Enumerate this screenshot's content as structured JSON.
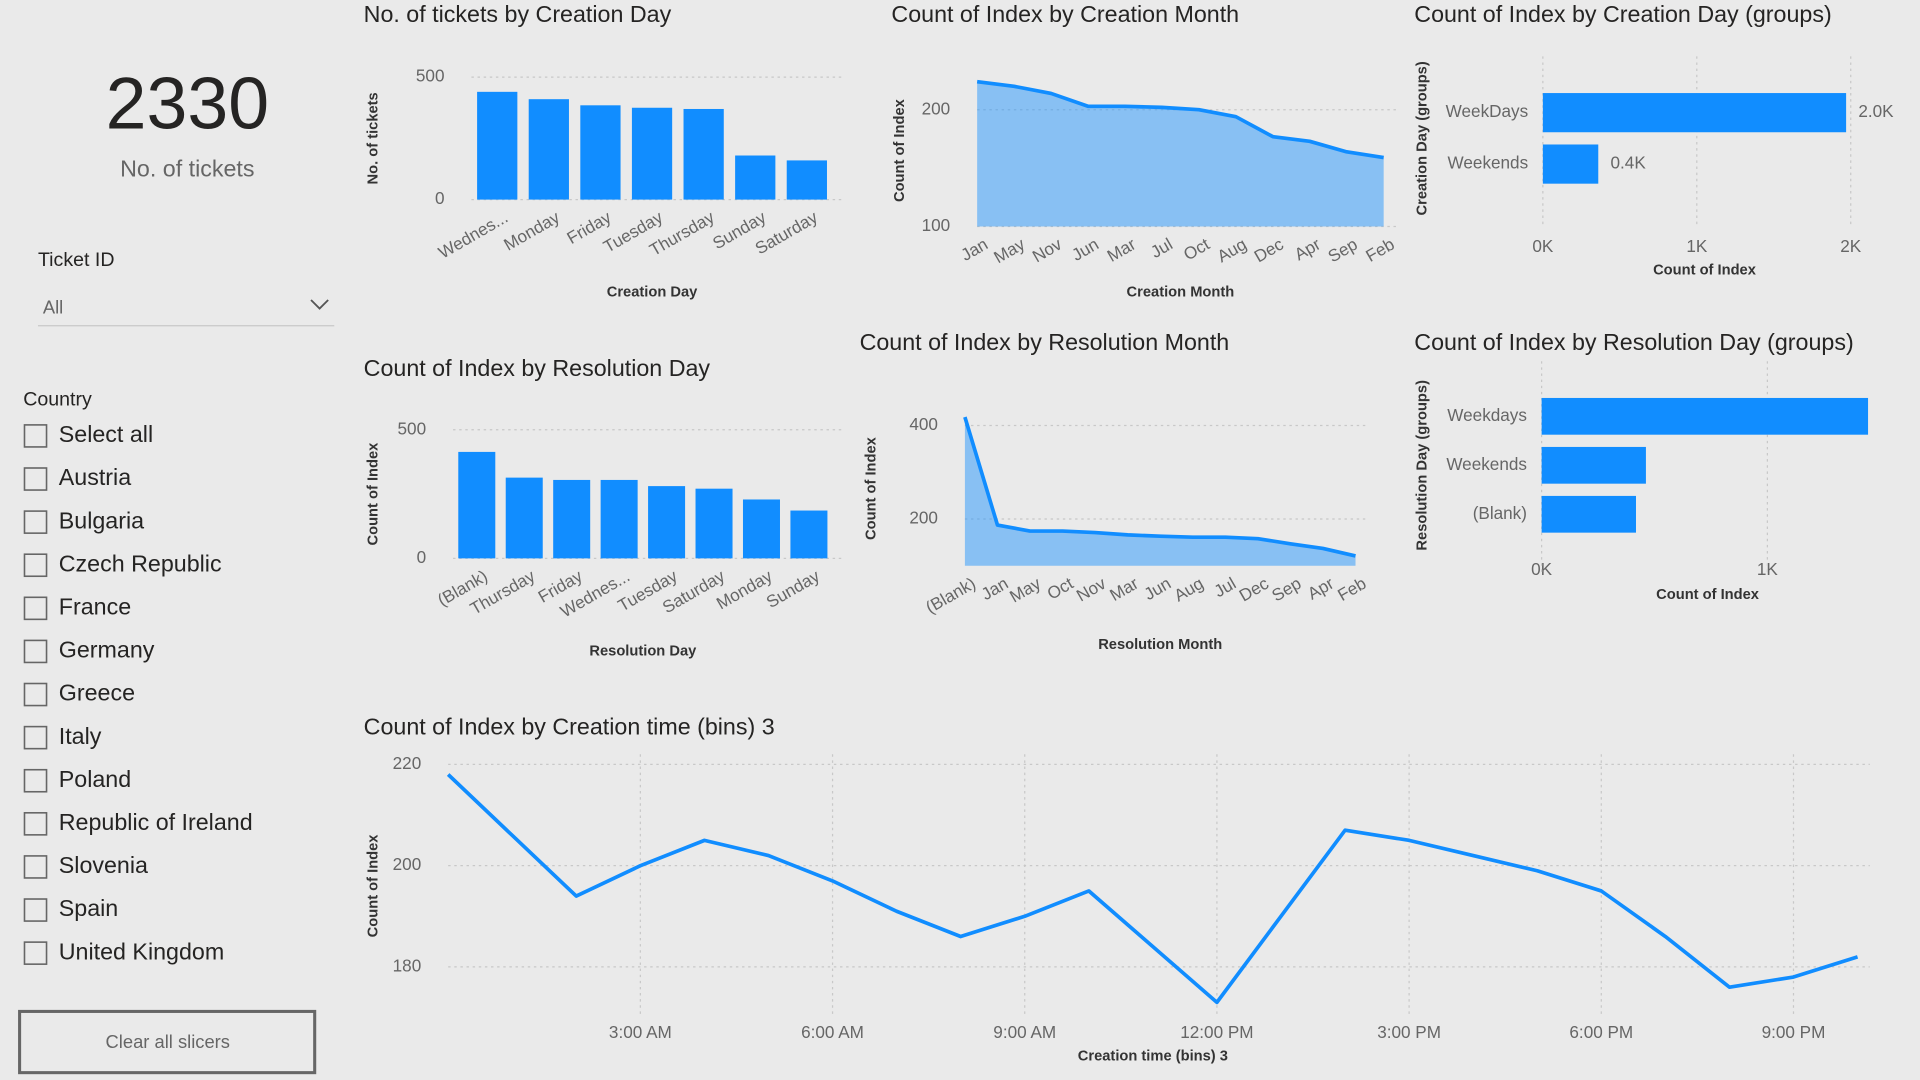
{
  "card": {
    "value": "2330",
    "label": "No. of tickets"
  },
  "ticket_slicer": {
    "title": "Ticket ID",
    "selection": "All"
  },
  "country_slicer": {
    "title": "Country",
    "items": [
      "Select all",
      "Austria",
      "Bulgaria",
      "Czech Republic",
      "France",
      "Germany",
      "Greece",
      "Italy",
      "Poland",
      "Republic of Ireland",
      "Slovenia",
      "Spain",
      "United Kingdom"
    ]
  },
  "button": {
    "label": "Clear all slicers"
  },
  "chart_data": [
    {
      "type": "bar",
      "title": "No. of tickets by Creation Day",
      "x_label": "Creation Day",
      "y_label": "No. of tickets",
      "categories": [
        "Wednes...",
        "Monday",
        "Friday",
        "Tuesday",
        "Thursday",
        "Sunday",
        "Saturday"
      ],
      "values": [
        440,
        410,
        385,
        375,
        370,
        180,
        160
      ],
      "color": "#118dff",
      "ylim": [
        0,
        500
      ],
      "yticks": [
        0,
        500
      ],
      "grid": true
    },
    {
      "type": "area",
      "title": "Count of Index by Creation Month",
      "x_label": "Creation Month",
      "y_label": "Count of Index",
      "categories": [
        "Jan",
        "May",
        "Nov",
        "Jun",
        "Mar",
        "Jul",
        "Oct",
        "Aug",
        "Dec",
        "Apr",
        "Sep",
        "Feb"
      ],
      "values": [
        224,
        220,
        214,
        203,
        203,
        202,
        200,
        194,
        177,
        173,
        164,
        159
      ],
      "color": "#118dff",
      "ylim": [
        100,
        230
      ],
      "yticks": [
        100,
        200
      ],
      "grid": true
    },
    {
      "type": "hbar",
      "title": "Count of Index by Creation Day (groups)",
      "x_label": "Count of Index",
      "y_label": "Creation Day (groups)",
      "categories": [
        "WeekDays",
        "Weekends"
      ],
      "values": [
        1970,
        360
      ],
      "value_labels": [
        "2.0K",
        "0.4K"
      ],
      "color": "#118dff",
      "xlim": [
        0,
        2100
      ],
      "xticks": [
        {
          "value": 0,
          "label": "0K"
        },
        {
          "value": 1000,
          "label": "1K"
        },
        {
          "value": 2000,
          "label": "2K"
        }
      ],
      "grid": true
    },
    {
      "type": "bar",
      "title": "Count of Index by Resolution Day",
      "x_label": "Resolution Day",
      "y_label": "Count of Index",
      "categories": [
        "(Blank)",
        "Thursday",
        "Friday",
        "Wednes...",
        "Tuesday",
        "Saturday",
        "Monday",
        "Sunday"
      ],
      "values": [
        414,
        314,
        305,
        305,
        281,
        271,
        229,
        186
      ],
      "color": "#118dff",
      "ylim": [
        0,
        500
      ],
      "yticks": [
        0,
        500
      ],
      "grid": true
    },
    {
      "type": "area",
      "title": "Count of Index by Resolution Month",
      "x_label": "Resolution Month",
      "y_label": "Count of Index",
      "categories": [
        "(Blank)",
        "Jan",
        "May",
        "Oct",
        "Nov",
        "Mar",
        "Jun",
        "Aug",
        "Jul",
        "Dec",
        "Sep",
        "Apr",
        "Feb"
      ],
      "values": [
        418,
        187,
        174,
        174,
        171,
        166,
        163,
        161,
        161,
        158,
        147,
        137,
        121
      ],
      "color": "#118dff",
      "ylim": [
        100,
        430
      ],
      "yticks": [
        200,
        400
      ],
      "grid": true
    },
    {
      "type": "hbar",
      "title": "Count of Index by Resolution Day (groups)",
      "x_label": "Count of Index",
      "y_label": "Resolution Day (groups)",
      "categories": [
        "Weekdays",
        "Weekends",
        "(Blank)"
      ],
      "values": [
        1446,
        462,
        418
      ],
      "color": "#118dff",
      "xlim": [
        0,
        1470
      ],
      "xticks": [
        {
          "value": 0,
          "label": "0K"
        },
        {
          "value": 1000,
          "label": "1K"
        }
      ],
      "grid": true
    },
    {
      "type": "line",
      "title": "Count of Index by Creation time (bins) 3",
      "x_label": "Creation time (bins) 3",
      "y_label": "Count of Index",
      "x": [
        0,
        1,
        2,
        3,
        4,
        5,
        6,
        7,
        8,
        9,
        10,
        11,
        12,
        13,
        14,
        15,
        16,
        17,
        18,
        19,
        20,
        21,
        22
      ],
      "values": [
        218,
        206,
        194,
        200,
        205,
        202,
        197,
        191,
        186,
        190,
        195,
        184,
        173,
        190,
        207,
        205,
        202,
        199,
        195,
        186,
        176,
        178,
        182
      ],
      "color": "#118dff",
      "xlim": [
        0,
        22
      ],
      "xticks": [
        {
          "value": 3,
          "label": "3:00 AM"
        },
        {
          "value": 6,
          "label": "6:00 AM"
        },
        {
          "value": 9,
          "label": "9:00 AM"
        },
        {
          "value": 12,
          "label": "12:00 PM"
        },
        {
          "value": 15,
          "label": "3:00 PM"
        },
        {
          "value": 18,
          "label": "6:00 PM"
        },
        {
          "value": 21,
          "label": "9:00 PM"
        }
      ],
      "ylim": [
        170,
        222
      ],
      "yticks": [
        180,
        200,
        220
      ],
      "grid": true
    }
  ]
}
